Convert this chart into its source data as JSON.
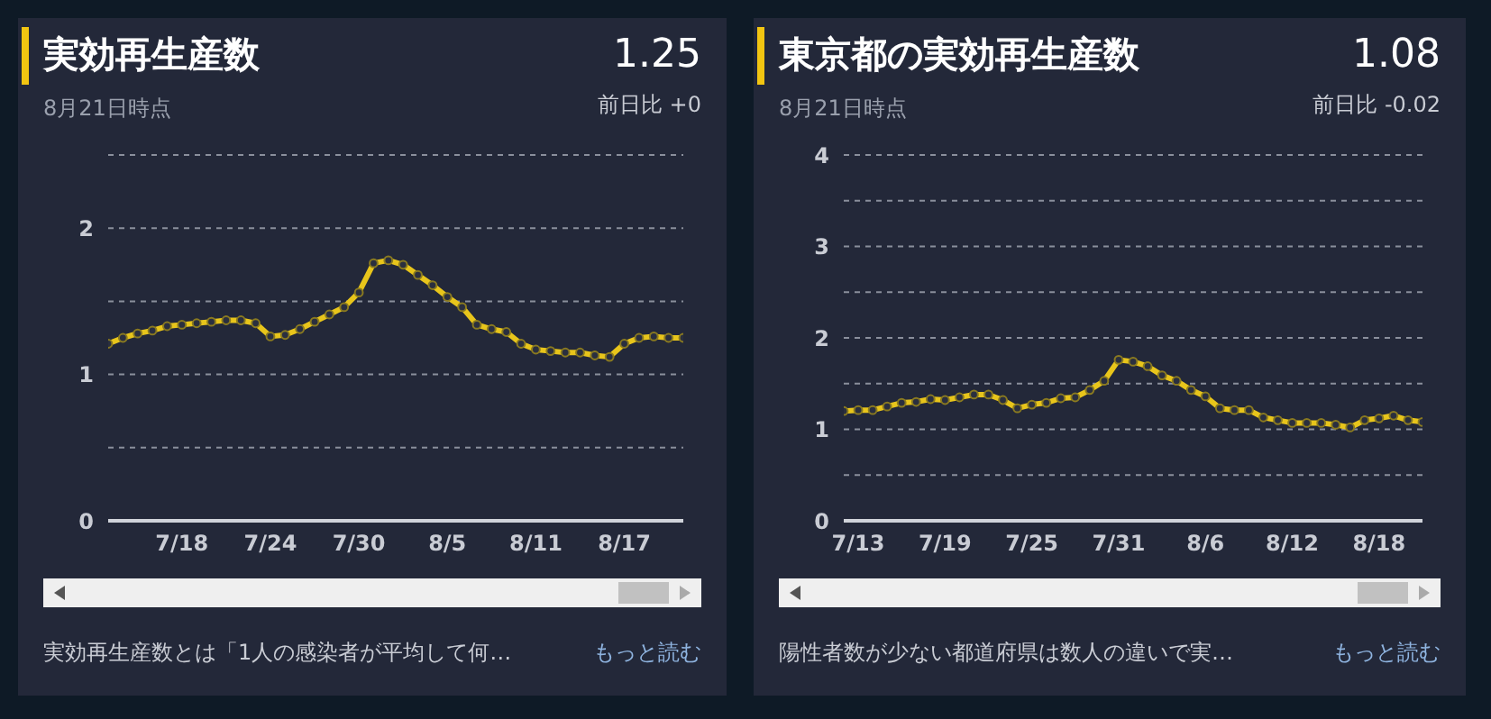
{
  "chart_data": [
    {
      "type": "line",
      "title": "実効再生産数",
      "subtitle": "8月21日時点",
      "x": [
        "--07-13",
        "--07-14",
        "--07-15",
        "--07-16",
        "--07-17",
        "--07-18",
        "--07-19",
        "--07-20",
        "--07-21",
        "--07-22",
        "--07-23",
        "--07-24",
        "--07-25",
        "--07-26",
        "--07-27",
        "--07-28",
        "--07-29",
        "--07-30",
        "--07-31",
        "--08-01",
        "--08-02",
        "--08-03",
        "--08-04",
        "--08-05",
        "--08-06",
        "--08-07",
        "--08-08",
        "--08-09",
        "--08-10",
        "--08-11",
        "--08-12",
        "--08-13",
        "--08-14",
        "--08-15",
        "--08-16",
        "--08-17",
        "--08-18",
        "--08-19",
        "--08-20",
        "--08-21"
      ],
      "series": [
        {
          "color": "#e8c51b",
          "values": [
            1.21,
            1.25,
            1.28,
            1.3,
            1.33,
            1.34,
            1.35,
            1.36,
            1.37,
            1.37,
            1.35,
            1.26,
            1.27,
            1.31,
            1.36,
            1.41,
            1.46,
            1.56,
            1.76,
            1.78,
            1.75,
            1.68,
            1.61,
            1.53,
            1.46,
            1.34,
            1.31,
            1.29,
            1.21,
            1.17,
            1.16,
            1.15,
            1.15,
            1.13,
            1.12,
            1.21,
            1.25,
            1.26,
            1.25,
            1.25
          ]
        }
      ],
      "xlim": [
        "--07-13",
        "--08-21"
      ],
      "xticks": [
        {
          "value": "--07-18",
          "label": "7/18"
        },
        {
          "value": "--07-24",
          "label": "7/24"
        },
        {
          "value": "--07-30",
          "label": "7/30"
        },
        {
          "value": "--08-05",
          "label": "8/5"
        },
        {
          "value": "--08-11",
          "label": "8/11"
        },
        {
          "value": "--08-17",
          "label": "8/17"
        }
      ],
      "ylim": [
        0,
        2.5
      ],
      "yticks": [
        0,
        {
          "value": 0.5,
          "label": null
        },
        1,
        {
          "value": 1.5,
          "label": null
        },
        2,
        {
          "value": 2.5,
          "label": null
        }
      ],
      "grid": "y",
      "marker": "circle",
      "line_style": "solid",
      "legend": false,
      "annotations": [
        "1.25",
        "前日比 +0",
        "実効再生産数とは「1人の感染者が平均して何…",
        "もっと読む"
      ]
    },
    {
      "type": "line",
      "title": "東京都の実効再生産数",
      "subtitle": "8月21日時点",
      "x": [
        "--07-12",
        "--07-13",
        "--07-14",
        "--07-15",
        "--07-16",
        "--07-17",
        "--07-18",
        "--07-19",
        "--07-20",
        "--07-21",
        "--07-22",
        "--07-23",
        "--07-24",
        "--07-25",
        "--07-26",
        "--07-27",
        "--07-28",
        "--07-29",
        "--07-30",
        "--07-31",
        "--08-01",
        "--08-02",
        "--08-03",
        "--08-04",
        "--08-05",
        "--08-06",
        "--08-07",
        "--08-08",
        "--08-09",
        "--08-10",
        "--08-11",
        "--08-12",
        "--08-13",
        "--08-14",
        "--08-15",
        "--08-16",
        "--08-17",
        "--08-18",
        "--08-19",
        "--08-20",
        "--08-21"
      ],
      "series": [
        {
          "color": "#e8c51b",
          "values": [
            1.2,
            1.21,
            1.21,
            1.25,
            1.29,
            1.3,
            1.33,
            1.32,
            1.35,
            1.38,
            1.38,
            1.32,
            1.23,
            1.27,
            1.29,
            1.34,
            1.35,
            1.43,
            1.53,
            1.76,
            1.74,
            1.69,
            1.59,
            1.53,
            1.43,
            1.36,
            1.23,
            1.21,
            1.21,
            1.13,
            1.1,
            1.07,
            1.07,
            1.07,
            1.05,
            1.02,
            1.1,
            1.12,
            1.15,
            1.1,
            1.08
          ]
        }
      ],
      "xlim": [
        "--07-12",
        "--08-21"
      ],
      "xticks": [
        {
          "value": "--07-13",
          "label": "7/13"
        },
        {
          "value": "--07-19",
          "label": "7/19"
        },
        {
          "value": "--07-25",
          "label": "7/25"
        },
        {
          "value": "--07-31",
          "label": "7/31"
        },
        {
          "value": "--08-06",
          "label": "8/6"
        },
        {
          "value": "--08-12",
          "label": "8/12"
        },
        {
          "value": "--08-18",
          "label": "8/18"
        }
      ],
      "ylim": [
        0,
        4
      ],
      "yticks": [
        0,
        {
          "value": 0.5,
          "label": null
        },
        1,
        {
          "value": 1.5,
          "label": null
        },
        2,
        {
          "value": 2.5,
          "label": null
        },
        3,
        {
          "value": 3.5,
          "label": null
        },
        4
      ],
      "grid": "y",
      "marker": "circle",
      "line_style": "solid",
      "legend": false,
      "annotations": [
        "1.08",
        "前日比 -0.02",
        "陽性者数が少ない都道府県は数人の違いで実…",
        "もっと読む"
      ]
    }
  ]
}
